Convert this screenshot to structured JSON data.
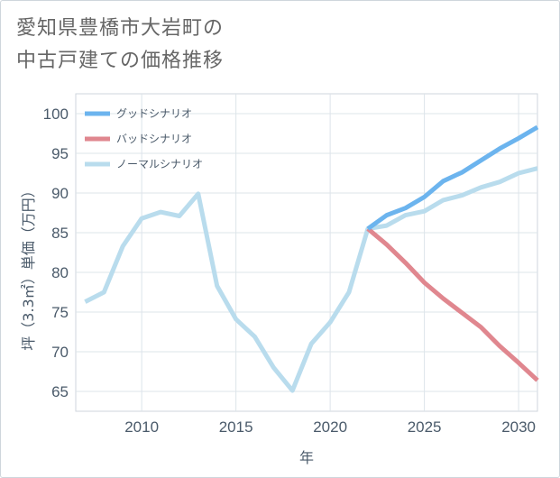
{
  "title": {
    "line1": "愛知県豊橋市大岩町の",
    "line2": "中古戸建ての価格推移"
  },
  "chart_data": {
    "type": "line",
    "title": "愛知県豊橋市大岩町の中古戸建ての価格推移",
    "xlabel": "年",
    "ylabel": "坪（3.3㎡）単価（万円）",
    "xlim": [
      2006.5,
      2031
    ],
    "ylim": [
      62.5,
      102.5
    ],
    "xticks": [
      2010,
      2015,
      2020,
      2025,
      2030
    ],
    "yticks": [
      65,
      70,
      75,
      80,
      85,
      90,
      95,
      100
    ],
    "grid": true,
    "legend_position": "top-left",
    "series": [
      {
        "name": "グッドシナリオ",
        "color": "#6cb4ee",
        "x": [
          2022,
          2023,
          2024,
          2025,
          2026,
          2027,
          2028,
          2029,
          2030,
          2031
        ],
        "values": [
          85.5,
          87.2,
          88.1,
          89.5,
          91.5,
          92.6,
          94.1,
          95.6,
          96.9,
          98.3
        ]
      },
      {
        "name": "バッドシナリオ",
        "color": "#e0878f",
        "x": [
          2022,
          2023,
          2024,
          2025,
          2026,
          2027,
          2028,
          2029,
          2030,
          2031
        ],
        "values": [
          85.5,
          83.5,
          81.2,
          78.7,
          76.7,
          74.9,
          73.1,
          70.7,
          68.6,
          66.4
        ]
      },
      {
        "name": "ノーマルシナリオ",
        "color": "#b9dced",
        "x": [
          2007,
          2008,
          2009,
          2010,
          2011,
          2012,
          2013,
          2014,
          2015,
          2016,
          2017,
          2018,
          2019,
          2020,
          2021,
          2022,
          2023,
          2024,
          2025,
          2026,
          2027,
          2028,
          2029,
          2030,
          2031
        ],
        "values": [
          76.3,
          77.5,
          83.3,
          86.8,
          87.6,
          87.1,
          89.9,
          78.3,
          74.1,
          71.9,
          68.0,
          65.1,
          71.0,
          73.7,
          77.5,
          85.5,
          85.9,
          87.2,
          87.7,
          89.1,
          89.7,
          90.7,
          91.4,
          92.5,
          93.1
        ]
      }
    ]
  }
}
